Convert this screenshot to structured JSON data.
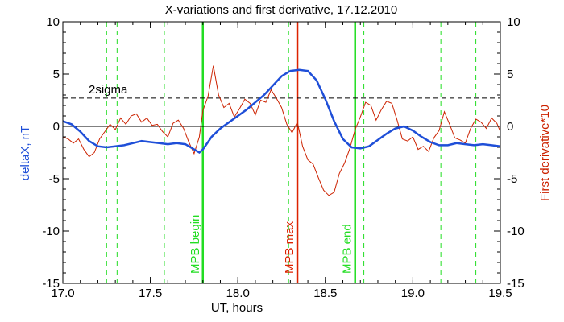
{
  "chart_data": {
    "type": "line",
    "title": "X-variations and first derivative, 17.12.2010",
    "xlabel": "UT, hours",
    "ylabel_left": "deltaX, nT",
    "ylabel_right": "First derivative*10",
    "xlim": [
      17.0,
      19.5
    ],
    "ylim": [
      -15,
      10
    ],
    "x_ticks": [
      "17.0",
      "17.5",
      "18.0",
      "18.5",
      "19.0",
      "19.5"
    ],
    "y_ticks": [
      "10",
      "5",
      "0",
      "-5",
      "-10",
      "-15"
    ],
    "threshold": {
      "label": "2sigma",
      "value": 2.7
    },
    "zero_line": 0,
    "colors": {
      "deltaX": "#1f4fd8",
      "derivative": "#cc2200",
      "green": "#22dd22",
      "red_marker": "#dd2200"
    },
    "markers": [
      {
        "label": "MPB begin",
        "x": 17.8,
        "color": "#22dd22"
      },
      {
        "label": "MPB max",
        "x": 18.34,
        "color": "#dd2200"
      },
      {
        "label": "MPB end",
        "x": 18.67,
        "color": "#22dd22"
      }
    ],
    "dashed_lines_x": [
      17.25,
      17.31,
      17.58,
      18.29,
      18.72,
      19.16,
      19.36
    ],
    "series": [
      {
        "name": "deltaX",
        "x": [
          17.0,
          17.05,
          17.1,
          17.15,
          17.2,
          17.25,
          17.3,
          17.35,
          17.4,
          17.45,
          17.5,
          17.55,
          17.6,
          17.65,
          17.7,
          17.75,
          17.78,
          17.8,
          17.85,
          17.9,
          17.95,
          18.0,
          18.05,
          18.1,
          18.15,
          18.2,
          18.25,
          18.3,
          18.35,
          18.4,
          18.45,
          18.5,
          18.55,
          18.6,
          18.65,
          18.7,
          18.75,
          18.8,
          18.85,
          18.9,
          18.95,
          19.0,
          19.05,
          19.1,
          19.15,
          19.2,
          19.25,
          19.3,
          19.35,
          19.4,
          19.45,
          19.5
        ],
        "values": [
          0.5,
          0.2,
          -0.5,
          -1.4,
          -1.9,
          -2.0,
          -1.9,
          -1.8,
          -1.6,
          -1.4,
          -1.5,
          -1.6,
          -1.7,
          -1.6,
          -1.7,
          -2.2,
          -2.5,
          -2.2,
          -1.0,
          -0.2,
          0.4,
          1.0,
          1.6,
          2.3,
          3.0,
          3.9,
          4.8,
          5.3,
          5.4,
          5.3,
          4.4,
          2.6,
          0.5,
          -1.2,
          -2.0,
          -2.1,
          -1.9,
          -1.3,
          -0.7,
          -0.2,
          0.0,
          -0.4,
          -1.0,
          -1.5,
          -1.8,
          -1.8,
          -1.6,
          -1.7,
          -1.8,
          -1.7,
          -1.8,
          -1.9
        ]
      },
      {
        "name": "First derivative*10",
        "x": [
          17.0,
          17.03,
          17.06,
          17.09,
          17.12,
          17.15,
          17.18,
          17.21,
          17.24,
          17.27,
          17.3,
          17.33,
          17.36,
          17.39,
          17.42,
          17.45,
          17.48,
          17.51,
          17.54,
          17.57,
          17.6,
          17.63,
          17.66,
          17.69,
          17.72,
          17.75,
          17.78,
          17.8,
          17.83,
          17.86,
          17.89,
          17.92,
          17.95,
          17.98,
          18.01,
          18.04,
          18.07,
          18.1,
          18.13,
          18.16,
          18.19,
          18.22,
          18.25,
          18.28,
          18.31,
          18.34,
          18.37,
          18.4,
          18.43,
          18.46,
          18.49,
          18.52,
          18.55,
          18.58,
          18.61,
          18.64,
          18.67,
          18.7,
          18.73,
          18.76,
          18.79,
          18.82,
          18.85,
          18.88,
          18.91,
          18.94,
          18.97,
          19.0,
          19.03,
          19.06,
          19.09,
          19.12,
          19.15,
          19.18,
          19.21,
          19.24,
          19.27,
          19.3,
          19.33,
          19.36,
          19.39,
          19.42,
          19.45,
          19.48,
          19.5
        ],
        "values": [
          -1.0,
          -1.2,
          -1.6,
          -1.2,
          -2.2,
          -2.9,
          -2.5,
          -1.2,
          -0.5,
          0.2,
          -0.3,
          0.8,
          0.2,
          1.0,
          1.2,
          0.4,
          0.8,
          0.1,
          0.2,
          -0.5,
          -1.0,
          0.3,
          0.6,
          -0.2,
          -1.5,
          -2.6,
          -1.0,
          1.5,
          2.9,
          5.8,
          3.0,
          1.8,
          2.2,
          0.9,
          1.7,
          2.6,
          2.2,
          1.1,
          2.5,
          2.3,
          3.5,
          2.7,
          1.8,
          0.2,
          -0.6,
          0.4,
          -1.9,
          -3.2,
          -3.6,
          -4.9,
          -6.1,
          -6.6,
          -6.3,
          -4.5,
          -3.5,
          -2.1,
          -0.3,
          0.9,
          2.3,
          2.0,
          0.6,
          1.6,
          2.4,
          2.2,
          0.6,
          -1.2,
          -1.4,
          -1.0,
          -2.2,
          -1.9,
          -2.4,
          -1.1,
          -0.4,
          1.4,
          0.2,
          -1.1,
          -1.3,
          -1.6,
          -0.2,
          0.7,
          0.4,
          -0.2,
          0.8,
          0.3,
          -0.5
        ]
      }
    ]
  }
}
